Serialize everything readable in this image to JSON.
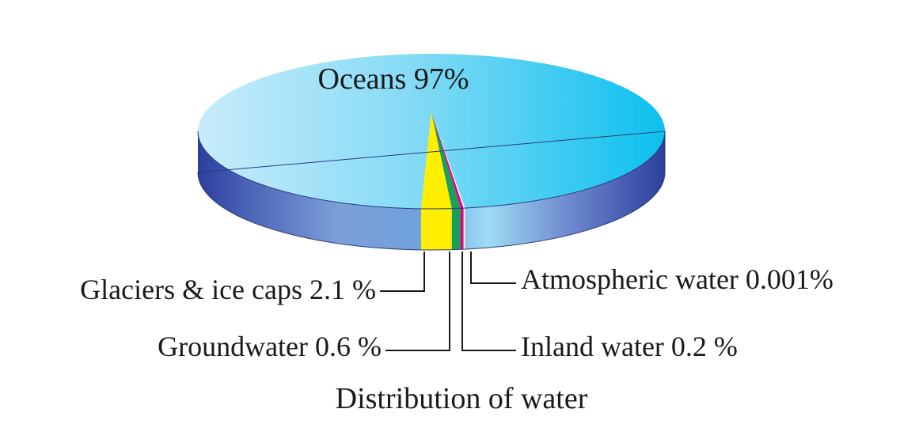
{
  "chart_data": {
    "type": "pie",
    "style": "3d",
    "title": "Distribution of water",
    "slices": [
      {
        "label": "Oceans 97%",
        "value": 97,
        "color": "#5ccfee"
      },
      {
        "label": "Glaciers & ice caps 2.1 %",
        "value": 2.1,
        "color": "#ffee00"
      },
      {
        "label": "Groundwater 0.6 %",
        "value": 0.6,
        "color": "#1aa05a"
      },
      {
        "label": "Inland water 0.2 %",
        "value": 0.2,
        "color": "#e8007e"
      },
      {
        "label": "Atmospheric water 0.001%",
        "value": 0.001,
        "color": "#f4f4f4"
      }
    ],
    "colors": {
      "rim": "#3347a3",
      "line": "#1a1a1a"
    }
  }
}
